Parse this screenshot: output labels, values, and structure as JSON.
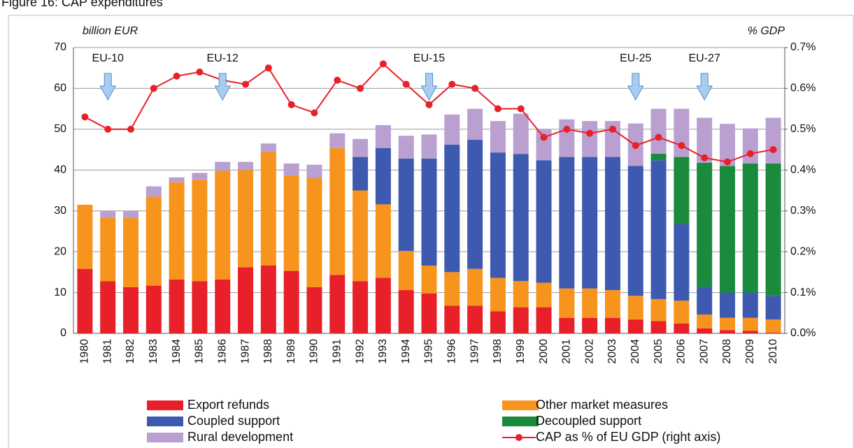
{
  "chart_data": {
    "type": "stacked-bar-line",
    "title": "Figure 16: CAP expenditures",
    "ylabel": "billion EUR",
    "y2label": "% GDP",
    "categories": [
      "1980",
      "1981",
      "1982",
      "1983",
      "1984",
      "1985",
      "1986",
      "1987",
      "1988",
      "1989",
      "1990",
      "1991",
      "1992",
      "1993",
      "1994",
      "1995",
      "1996",
      "1997",
      "1998",
      "1999",
      "2000",
      "2001",
      "2002",
      "2003",
      "2004",
      "2005",
      "2006",
      "2007",
      "2008",
      "2009",
      "2010"
    ],
    "series": [
      {
        "name": "Export refunds",
        "color": "#e8202a",
        "values": [
          15.8,
          12.8,
          11.3,
          11.7,
          13.2,
          12.8,
          13.2,
          16.2,
          16.6,
          15.3,
          11.3,
          14.3,
          12.8,
          13.6,
          10.6,
          9.8,
          6.8,
          6.8,
          5.4,
          6.4,
          6.4,
          3.8,
          3.8,
          3.8,
          3.4,
          3.0,
          2.4,
          1.2,
          0.8,
          0.6,
          0.2
        ]
      },
      {
        "name": "Other market measures",
        "color": "#f7941d",
        "values": [
          15.7,
          15.5,
          17.0,
          21.8,
          23.8,
          24.8,
          26.6,
          23.8,
          27.8,
          23.3,
          26.7,
          31.1,
          22.2,
          18.0,
          9.6,
          6.8,
          8.2,
          9.0,
          8.2,
          6.4,
          6.0,
          7.2,
          7.2,
          6.8,
          5.8,
          5.4,
          5.6,
          3.4,
          3.0,
          3.2,
          3.2
        ]
      },
      {
        "name": "Coupled support",
        "color": "#3d5ab0",
        "values": [
          0,
          0,
          0,
          0,
          0,
          0,
          0,
          0,
          0,
          0,
          0,
          0,
          8.2,
          13.8,
          22.6,
          26.2,
          31.2,
          31.6,
          30.7,
          31.1,
          30.0,
          32.2,
          32.2,
          32.6,
          31.8,
          34.0,
          18.8,
          6.8,
          6.2,
          6.2,
          5.8
        ]
      },
      {
        "name": "Decoupled support",
        "color": "#1a8a3c",
        "values": [
          0,
          0,
          0,
          0,
          0,
          0,
          0,
          0,
          0,
          0,
          0,
          0,
          0,
          0,
          0,
          0,
          0,
          0,
          0,
          0,
          0,
          0,
          0,
          0,
          0,
          1.6,
          16.4,
          30.4,
          31.0,
          31.6,
          32.4
        ]
      },
      {
        "name": "Rural development",
        "color": "#b9a0d0",
        "values": [
          0,
          1.7,
          1.7,
          2.5,
          1.2,
          1.7,
          2.2,
          2.0,
          2.1,
          3.0,
          3.3,
          3.6,
          4.4,
          5.6,
          5.6,
          5.9,
          7.4,
          7.6,
          7.7,
          9.9,
          7.5,
          9.2,
          8.8,
          8.8,
          10.4,
          11.0,
          11.8,
          11.0,
          10.3,
          8.6,
          11.2
        ]
      }
    ],
    "line": {
      "name": "CAP as % of EU GDP (right axis)",
      "color": "#e8202a",
      "axis": "y2",
      "values": [
        0.53,
        0.5,
        0.5,
        0.6,
        0.63,
        0.64,
        0.62,
        0.61,
        0.65,
        0.56,
        0.54,
        0.62,
        0.6,
        0.66,
        0.61,
        0.56,
        0.61,
        0.6,
        0.55,
        0.55,
        0.48,
        0.5,
        0.49,
        0.5,
        0.46,
        0.48,
        0.46,
        0.43,
        0.42,
        0.44,
        0.45
      ]
    },
    "ylim": [
      0,
      70
    ],
    "yticks": [
      0,
      10,
      20,
      30,
      40,
      50,
      60,
      70
    ],
    "y2lim": [
      0,
      0.7
    ],
    "y2ticks": [
      {
        "value": 0,
        "label": "0.0%"
      },
      {
        "value": 0.1,
        "label": "0.1%"
      },
      {
        "value": 0.2,
        "label": "0.2%"
      },
      {
        "value": 0.3,
        "label": "0.3%"
      },
      {
        "value": 0.4,
        "label": "0.4%"
      },
      {
        "value": 0.5,
        "label": "0.5%"
      },
      {
        "value": 0.6,
        "label": "0.6%"
      },
      {
        "value": 0.7,
        "label": "0.7%"
      }
    ],
    "grid": true,
    "annotations": [
      {
        "text": "EU-10",
        "category": "1981"
      },
      {
        "text": "EU-12",
        "category": "1986"
      },
      {
        "text": "EU-15",
        "category": "1995"
      },
      {
        "text": "EU-25",
        "category": "2004"
      },
      {
        "text": "EU-27",
        "category": "2007"
      }
    ]
  }
}
